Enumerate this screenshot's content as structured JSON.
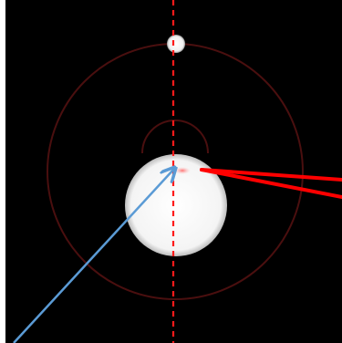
{
  "colors": {
    "background": "#000000",
    "page_margin": "#ffffff",
    "orbit": "#4a0f0f",
    "axis": "#ff1a1a",
    "beam": "#ff0000",
    "arrow": "#5b9bd5",
    "body": "#ffffff",
    "spot": "#ff8a8a"
  },
  "elements": {
    "central_body": "white-sphere",
    "moon": "small-white-sphere",
    "outer_orbit": "faint-red-circle",
    "inner_arc": "faint-red-arc",
    "vertical_axis": "dashed-red-line",
    "incoming_arrow": "blue-arrow",
    "beams": "red-converging-lines"
  }
}
